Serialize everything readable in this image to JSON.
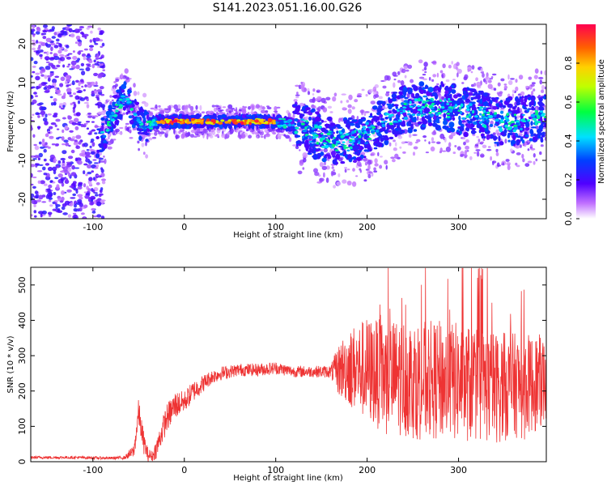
{
  "title": "S141.2023.051.16.00.G26",
  "colors": {
    "snr_line": "#ee3333",
    "background": "#ffffff"
  },
  "chart_data": [
    {
      "type": "heatmap",
      "xlabel": "Height of straight line (km)",
      "ylabel": "Frequency (Hz)",
      "xlim": [
        -168,
        396
      ],
      "ylim": [
        -25,
        25
      ],
      "xticks": [
        -100,
        0,
        100,
        200,
        300
      ],
      "yticks": [
        -20,
        -10,
        0,
        10,
        20
      ],
      "colorbar": {
        "label": "Normalized spectral amplitude",
        "range": [
          0.0,
          1.0
        ],
        "ticks": [
          "0.0",
          "0.2",
          "0.4",
          "0.6",
          "0.8"
        ],
        "colormap": "rainbow"
      },
      "ridge": {
        "x": [
          -95,
          -85,
          -75,
          -65,
          -60,
          -55,
          -50,
          -45,
          -40,
          -30,
          -20,
          0,
          50,
          100,
          120,
          140,
          160,
          180,
          200,
          220,
          240,
          260,
          280,
          300,
          320,
          340,
          360,
          380,
          396
        ],
        "freq": [
          -5,
          -2,
          3,
          6,
          4,
          2,
          0,
          -1,
          -1,
          0,
          0,
          0,
          0,
          0,
          -1,
          -3,
          -5,
          -5,
          -3,
          0,
          3,
          4,
          4,
          3,
          2,
          0,
          0,
          1,
          1
        ]
      }
    },
    {
      "type": "line",
      "xlabel": "Height of straight line (km)",
      "ylabel": "SNR (10 * v/v)",
      "xlim": [
        -168,
        396
      ],
      "ylim": [
        0,
        550
      ],
      "xticks": [
        -100,
        0,
        100,
        200,
        300
      ],
      "yticks": [
        0,
        100,
        200,
        300,
        400,
        500
      ],
      "series": [
        {
          "x": [
            -168,
            -120,
            -80,
            -65,
            -55,
            -50,
            -45,
            -40,
            -35,
            -30,
            -20,
            -10,
            0,
            10,
            20,
            30,
            40,
            50,
            60,
            80,
            100,
            120,
            140,
            160,
            170,
            180,
            200,
            220,
            240,
            260,
            280,
            300,
            320,
            340,
            360,
            380,
            396
          ],
          "y": [
            12,
            12,
            10,
            12,
            30,
            140,
            60,
            20,
            15,
            40,
            120,
            160,
            170,
            200,
            220,
            240,
            250,
            255,
            260,
            260,
            265,
            255,
            255,
            255,
            260,
            270,
            260,
            240,
            240,
            230,
            230,
            225,
            220,
            210,
            215,
            220,
            230
          ],
          "spread": [
            4,
            4,
            4,
            5,
            20,
            40,
            35,
            20,
            15,
            30,
            40,
            40,
            30,
            30,
            25,
            20,
            20,
            18,
            18,
            18,
            18,
            16,
            16,
            18,
            80,
            110,
            150,
            160,
            170,
            170,
            170,
            170,
            165,
            160,
            150,
            140,
            130
          ]
        }
      ]
    }
  ]
}
